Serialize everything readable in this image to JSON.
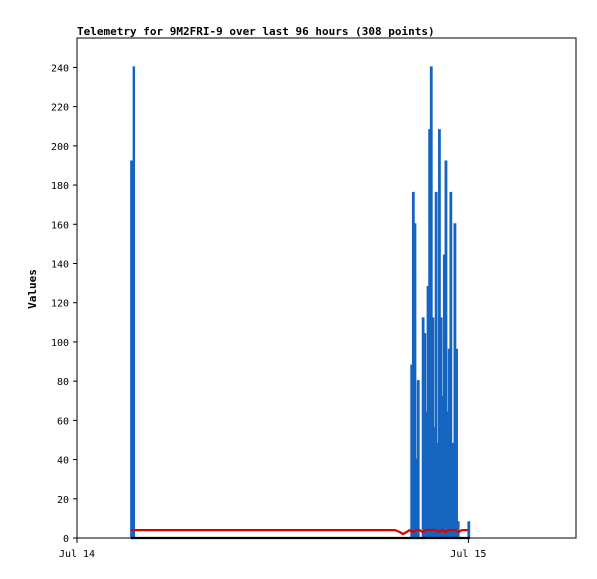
{
  "chart_data": {
    "type": "line",
    "title": "Telemetry for 9M2FRI-9 over last 96 hours (308 points)",
    "xlabel": "",
    "ylabel": "Values",
    "ylim": [
      0,
      255
    ],
    "yticks": [
      0,
      20,
      40,
      60,
      80,
      100,
      120,
      140,
      160,
      180,
      200,
      220,
      240
    ],
    "xlim_hours": [
      0,
      30.6
    ],
    "xticks": [
      {
        "label": "Jul 14",
        "hour": 0
      },
      {
        "label": "Jul 15",
        "hour": 24
      }
    ],
    "grid": false,
    "legend": "none",
    "series": [
      {
        "color": "#1565c0",
        "x_hours": [
          3.3,
          3.32,
          3.35,
          3.37,
          3.39,
          3.42,
          3.45,
          3.47,
          3.5,
          3.52,
          3.55,
          3.58,
          3.6,
          3.63,
          20.45,
          20.5,
          20.55,
          20.6,
          20.65,
          20.7,
          20.75,
          20.8,
          20.85,
          20.9,
          20.95,
          21.0,
          21.1,
          21.2,
          21.25,
          21.3,
          21.35,
          21.4,
          21.45,
          21.5,
          21.55,
          21.6,
          21.65,
          21.7,
          21.75,
          21.8,
          21.85,
          21.9,
          21.95,
          22.0,
          22.05,
          22.1,
          22.15,
          22.2,
          22.25,
          22.3,
          22.35,
          22.4,
          22.45,
          22.5,
          22.55,
          22.6,
          22.65,
          22.7,
          22.75,
          22.8,
          22.85,
          22.9,
          22.95,
          23.0,
          23.05,
          23.1,
          23.15,
          23.2,
          23.25,
          23.3,
          23.35,
          23.4,
          23.45,
          23.5,
          23.55,
          23.6,
          23.65,
          23.7,
          23.75,
          23.8,
          23.85,
          23.9,
          23.95,
          24.0,
          24.05,
          24.1
        ],
        "values": [
          0,
          192,
          0,
          120,
          0,
          96,
          0,
          240,
          0,
          0,
          0,
          0,
          0,
          0,
          0,
          88,
          0,
          176,
          0,
          160,
          0,
          40,
          0,
          80,
          0,
          0,
          0,
          112,
          0,
          104,
          0,
          64,
          0,
          128,
          0,
          208,
          0,
          240,
          0,
          112,
          0,
          56,
          0,
          176,
          0,
          48,
          0,
          208,
          0,
          112,
          0,
          72,
          0,
          144,
          0,
          192,
          0,
          64,
          0,
          96,
          0,
          176,
          0,
          0,
          48,
          0,
          160,
          0,
          96,
          0,
          8,
          0,
          0,
          0,
          0,
          0,
          0,
          0,
          0,
          0,
          0,
          0,
          0,
          8,
          0,
          0
        ],
        "step": true
      },
      {
        "color": "#e00000",
        "x_hours": [
          3.3,
          4,
          6,
          8,
          10,
          12,
          14,
          16,
          18,
          19.5,
          19.8,
          20.0,
          20.2,
          20.4,
          20.6,
          20.8,
          21.0,
          21.2,
          21.4,
          21.6,
          21.8,
          22.0,
          22.2,
          22.4,
          22.6,
          22.8,
          23.0,
          23.2,
          23.4,
          23.6,
          23.8,
          24.0
        ],
        "values": [
          4,
          4,
          4,
          4,
          4,
          4,
          4,
          4,
          4,
          4,
          3,
          2,
          3,
          4,
          3,
          4,
          4,
          3,
          4,
          4,
          4,
          4,
          3,
          4,
          3,
          4,
          4,
          4,
          3,
          4,
          4,
          4
        ]
      },
      {
        "color": "#000000",
        "x_hours": [
          3.3,
          24.1
        ],
        "values": [
          0,
          0
        ]
      }
    ]
  }
}
